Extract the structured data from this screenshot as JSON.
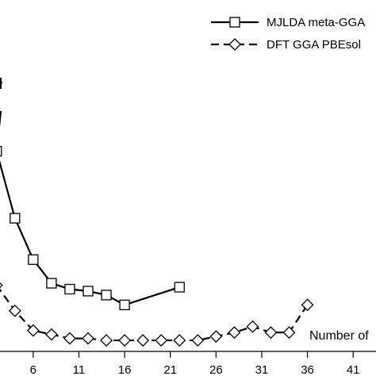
{
  "chart_data": {
    "type": "line",
    "title": "",
    "xlabel": "Number of",
    "ylabel": "",
    "xlim": [
      1.5,
      43.5
    ],
    "ylim": [
      -4.6,
      88
    ],
    "x_ticks": [
      6,
      11,
      16,
      21,
      26,
      31,
      36,
      41
    ],
    "x_tick_labels": [
      "6",
      "11",
      "16",
      "21",
      "26",
      "31",
      "36",
      "41"
    ],
    "grid": false,
    "legend_position": "top-right",
    "series": [
      {
        "name": "MJLDA meta-GGA",
        "marker": "square",
        "line_style": "solid",
        "color": "#000000",
        "x": [
          2,
          4,
          6,
          8,
          10,
          12,
          14,
          16,
          22
        ],
        "y": [
          46,
          29,
          18.5,
          12.5,
          11,
          10.5,
          9.5,
          7,
          11.5
        ]
      },
      {
        "name": "DFT GGA PBEsol",
        "marker": "diamond",
        "line_style": "dashed",
        "color": "#000000",
        "x": [
          2,
          4,
          6,
          8,
          10,
          12,
          14,
          16,
          18,
          20,
          22,
          24,
          26,
          28,
          30,
          32,
          34,
          36
        ],
        "y": [
          12,
          5.5,
          0.5,
          -0.5,
          -1.5,
          -1.5,
          -2,
          -2,
          -2,
          -2,
          -2,
          -2,
          -1,
          0,
          1.5,
          0,
          0,
          7
        ]
      }
    ]
  }
}
